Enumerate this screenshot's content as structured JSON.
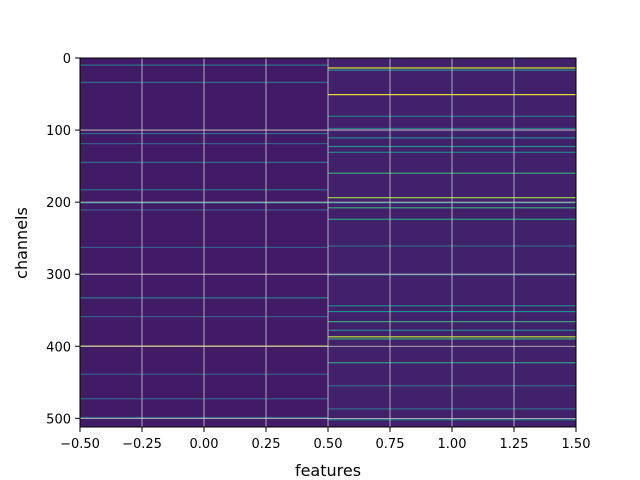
{
  "chart_data": {
    "type": "heatmap",
    "title": "",
    "xlabel": "features",
    "ylabel": "channels",
    "xlim": [
      -0.5,
      1.5
    ],
    "ylim": [
      512,
      0
    ],
    "y_inverted": true,
    "grid": true,
    "colormap": "viridis",
    "x_ticks": [
      -0.5,
      -0.25,
      0.0,
      0.25,
      0.5,
      0.75,
      1.0,
      1.25,
      1.5
    ],
    "x_tick_labels": [
      "−0.50",
      "−0.25",
      "0.00",
      "0.25",
      "0.50",
      "0.75",
      "1.00",
      "1.25",
      "1.50"
    ],
    "y_ticks": [
      0,
      100,
      200,
      300,
      400,
      500
    ],
    "y_tick_labels": [
      "0",
      "100",
      "200",
      "300",
      "400",
      "500"
    ],
    "columns": [
      {
        "feature": 0,
        "base_level": 0.08,
        "highlights": [
          {
            "channel": 9,
            "level": 0.4
          },
          {
            "channel": 33,
            "level": 0.35
          },
          {
            "channel": 104,
            "level": 0.35
          },
          {
            "channel": 118,
            "level": 0.3
          },
          {
            "channel": 144,
            "level": 0.35
          },
          {
            "channel": 182,
            "level": 0.35
          },
          {
            "channel": 200,
            "level": 0.5
          },
          {
            "channel": 210,
            "level": 0.3
          },
          {
            "channel": 262,
            "level": 0.3
          },
          {
            "channel": 332,
            "level": 0.4
          },
          {
            "channel": 358,
            "level": 0.3
          },
          {
            "channel": 399,
            "level": 0.95
          },
          {
            "channel": 438,
            "level": 0.3
          },
          {
            "channel": 472,
            "level": 0.3
          },
          {
            "channel": 498,
            "level": 0.35
          }
        ]
      },
      {
        "feature": 1,
        "base_level": 0.1,
        "highlights": [
          {
            "channel": 13,
            "level": 0.95
          },
          {
            "channel": 16,
            "level": 0.5
          },
          {
            "channel": 50,
            "level": 0.97
          },
          {
            "channel": 80,
            "level": 0.4
          },
          {
            "channel": 97,
            "level": 0.4
          },
          {
            "channel": 110,
            "level": 0.45
          },
          {
            "channel": 122,
            "level": 0.5
          },
          {
            "channel": 130,
            "level": 0.45
          },
          {
            "channel": 159,
            "level": 0.6
          },
          {
            "channel": 193,
            "level": 0.85
          },
          {
            "channel": 200,
            "level": 0.45
          },
          {
            "channel": 207,
            "level": 0.6
          },
          {
            "channel": 223,
            "level": 0.55
          },
          {
            "channel": 260,
            "level": 0.35
          },
          {
            "channel": 300,
            "level": 0.35
          },
          {
            "channel": 343,
            "level": 0.45
          },
          {
            "channel": 351,
            "level": 0.5
          },
          {
            "channel": 365,
            "level": 0.6
          },
          {
            "channel": 377,
            "level": 0.45
          },
          {
            "channel": 386,
            "level": 0.9
          },
          {
            "channel": 389,
            "level": 0.6
          },
          {
            "channel": 422,
            "level": 0.55
          },
          {
            "channel": 454,
            "level": 0.35
          },
          {
            "channel": 486,
            "level": 0.35
          },
          {
            "channel": 501,
            "level": 0.45
          }
        ]
      }
    ]
  }
}
